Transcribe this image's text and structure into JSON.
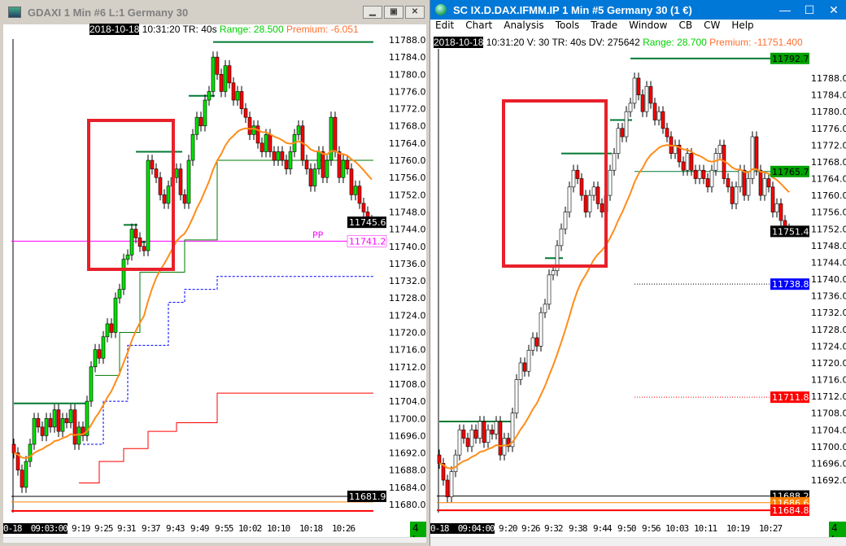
{
  "left": {
    "title": "GDAXI  1 Min  #6  L:1  Germany 30",
    "window_buttons": [
      "minimize",
      "restore",
      "close"
    ],
    "info": {
      "date": "2018-10-18",
      "time_tr": " 10:31:20 TR: 40s ",
      "range": "Range: 28.500",
      "premium": "  Premium: -6.051"
    },
    "time_labels": [
      "0-18  09:03:00",
      "9:19",
      "9:25",
      "9:31",
      "9:37",
      "9:43",
      "9:49",
      "9:55",
      "10:02",
      "10:10",
      "10:18",
      "10:26"
    ],
    "badge": "4 L",
    "price_labels": [
      "11788.0",
      "11784.0",
      "11780.0",
      "11776.0",
      "11772.0",
      "11768.0",
      "11764.0",
      "11760.0",
      "11756.0",
      "11752.0",
      "11748.0",
      "11744.0",
      "11740.0",
      "11736.0",
      "11732.0",
      "11728.0",
      "11724.0",
      "11720.0",
      "11716.0",
      "11712.0",
      "11708.0",
      "11704.0",
      "11700.0",
      "11696.0",
      "11692.0",
      "11688.0",
      "11684.0",
      "11680.0"
    ],
    "markers": [
      {
        "label": "11745.6",
        "price": 11745.6,
        "bg": "#000000",
        "fg": "#ffffff"
      },
      {
        "label": "11741.2",
        "price": 11741.2,
        "bg": "#ffffff",
        "fg": "#ff00ff"
      },
      {
        "label": "11681.9",
        "price": 11681.9,
        "bg": "#000000",
        "fg": "#ffffff"
      }
    ],
    "pp_label": "PP",
    "closes": [
      11692,
      11688,
      11684,
      11690,
      11694,
      11700,
      11698,
      11696,
      11700,
      11698,
      11702,
      11697,
      11700,
      11699,
      11702,
      11694,
      11698,
      11696,
      11704,
      11712,
      11716,
      11714,
      11719,
      11722,
      11720,
      11728,
      11730,
      11737,
      11738,
      11744,
      11742,
      11740,
      11739,
      11760,
      11758,
      11756,
      11752,
      11750,
      11754,
      11756,
      11758,
      11752,
      11750,
      11760,
      11766,
      11770,
      11768,
      11774,
      11776,
      11784,
      11780,
      11776,
      11782,
      11778,
      11774,
      11776,
      11772,
      11770,
      11766,
      11768,
      11764,
      11762,
      11766,
      11762,
      11760,
      11762,
      11760,
      11758,
      11762,
      11766,
      11768,
      11760,
      11758,
      11754,
      11758,
      11762,
      11756,
      11760,
      11770,
      11762,
      11756,
      11760,
      11758,
      11752,
      11754,
      11750,
      11748,
      11746,
      11745.6
    ],
    "hlines": [
      {
        "price": 11741.2,
        "color": "#ff00ff"
      },
      {
        "price": 11681.9,
        "color": "#000000"
      },
      {
        "price": 11680.6,
        "color": "#ff8000"
      },
      {
        "price": 11678.5,
        "color": "#ff0000"
      }
    ],
    "high_segments": [
      [
        0,
        18,
        11703.5
      ],
      [
        27,
        30,
        11745
      ],
      [
        31,
        32,
        11741
      ],
      [
        30,
        41,
        11762
      ],
      [
        43,
        49,
        11775
      ],
      [
        49,
        88,
        11787.5
      ]
    ],
    "steps_red": [
      [
        16,
        11685
      ],
      [
        21,
        11690
      ],
      [
        27,
        11693
      ],
      [
        33,
        11697
      ],
      [
        40,
        11699
      ],
      [
        50,
        11705.9
      ]
    ],
    "steps_blue": [
      [
        17,
        11694
      ],
      [
        22,
        11704
      ],
      [
        28,
        11717
      ],
      [
        38,
        11727
      ],
      [
        42,
        11730
      ],
      [
        50,
        11733
      ]
    ],
    "steps_green": [
      [
        20,
        11710
      ],
      [
        26,
        11720
      ],
      [
        31,
        11734
      ],
      [
        42,
        11741.5
      ],
      [
        50,
        11760
      ]
    ],
    "colors": {
      "up": "#00e000",
      "down": "#ff0000",
      "ema": "#ff8c1a",
      "highline": "#007a33",
      "box": "#e8202a"
    }
  },
  "right": {
    "title": "SC IX.D.DAX.IFMM.IP  1 Min   #5  Germany 30 (1 €)",
    "menu": [
      "Edit",
      "Chart",
      "Analysis",
      "Tools",
      "Trade",
      "Window",
      "CB",
      "CW",
      "Help"
    ],
    "info": {
      "date": "2018-10-18",
      "rest": " 10:31:20 V: 30 TR: 40s DV: 275642 ",
      "range": "Range: 28.700",
      "premium": "  Premium: -11751.400"
    },
    "time_labels": [
      "0-18  09:04:00",
      "9:20",
      "9:26",
      "9:32",
      "9:38",
      "9:44",
      "9:50",
      "9:56",
      "10:03",
      "10:11",
      "10:19",
      "10:27"
    ],
    "badge": "4 L",
    "price_labels": [
      "11788.0",
      "11784.0",
      "11780.0",
      "11776.0",
      "11772.0",
      "11768.0",
      "11764.0",
      "11760.0",
      "11756.0",
      "11752.0",
      "11748.0",
      "11744.0",
      "11740.0",
      "11736.0",
      "11732.0",
      "11728.0",
      "11724.0",
      "11720.0",
      "11716.0",
      "11712.0",
      "11708.0",
      "11704.0",
      "11700.0",
      "11696.0",
      "11692.0"
    ],
    "markers": [
      {
        "label": "11792.7",
        "price": 11792.7,
        "bg": "#00a000",
        "fg": "#000000"
      },
      {
        "label": "11765.7",
        "price": 11765.7,
        "bg": "#00a000",
        "fg": "#000000"
      },
      {
        "label": "11751.4",
        "price": 11751.4,
        "bg": "#000000",
        "fg": "#ffffff"
      },
      {
        "label": "11738.8",
        "price": 11738.8,
        "bg": "#0000ff",
        "fg": "#ffffff"
      },
      {
        "label": "11711.8",
        "price": 11711.8,
        "bg": "#ff0000",
        "fg": "#ffffff"
      },
      {
        "label": "11688.2",
        "price": 11688.2,
        "bg": "#000000",
        "fg": "#ffffff"
      },
      {
        "label": "11686.6",
        "price": 11686.6,
        "bg": "#ff8000",
        "fg": "#ffffff"
      },
      {
        "label": "11684.8",
        "price": 11684.8,
        "bg": "#ff0000",
        "fg": "#ffffff"
      }
    ],
    "closes": [
      11696,
      11692,
      11688,
      11694,
      11698,
      11704,
      11702,
      11700,
      11704,
      11702,
      11706,
      11701,
      11704,
      11703,
      11706,
      11698,
      11702,
      11700,
      11708,
      11716,
      11720,
      11718,
      11723,
      11726,
      11724,
      11732,
      11734,
      11741,
      11742,
      11748,
      11752,
      11756,
      11762,
      11766,
      11764,
      11760,
      11756,
      11760,
      11762,
      11758,
      11756,
      11760,
      11766,
      11770,
      11776,
      11774,
      11780,
      11782,
      11788,
      11784,
      11780,
      11786,
      11782,
      11778,
      11780,
      11776,
      11774,
      11770,
      11772,
      11768,
      11766,
      11770,
      11766,
      11764,
      11766,
      11764,
      11762,
      11766,
      11770,
      11772,
      11764,
      11762,
      11758,
      11762,
      11766,
      11760,
      11764,
      11774,
      11766,
      11760,
      11764,
      11762,
      11756,
      11758,
      11754,
      11752,
      11751.4
    ],
    "hlines": [
      {
        "price": 11688.2,
        "color": "#000000"
      },
      {
        "price": 11686.6,
        "color": "#ff8000"
      },
      {
        "price": 11684.8,
        "color": "#ff0000"
      }
    ],
    "high_segments": [
      [
        0,
        18,
        11706
      ],
      [
        26,
        30,
        11745
      ],
      [
        30,
        42,
        11770
      ],
      [
        42,
        47,
        11778
      ],
      [
        47,
        87,
        11792.7
      ]
    ],
    "dotted": [
      {
        "price": 11738.8,
        "color": "#000000",
        "from": 48
      },
      {
        "price": 11711.8,
        "color": "#ff0000",
        "from": 48
      },
      {
        "price": 11765.7,
        "color": "#007a33",
        "from": 48
      }
    ],
    "colors": {
      "up": "#ffffff",
      "down": "#ff0000",
      "ema": "#ff8c1a",
      "highline": "#007a33",
      "box": "#e8202a"
    }
  }
}
